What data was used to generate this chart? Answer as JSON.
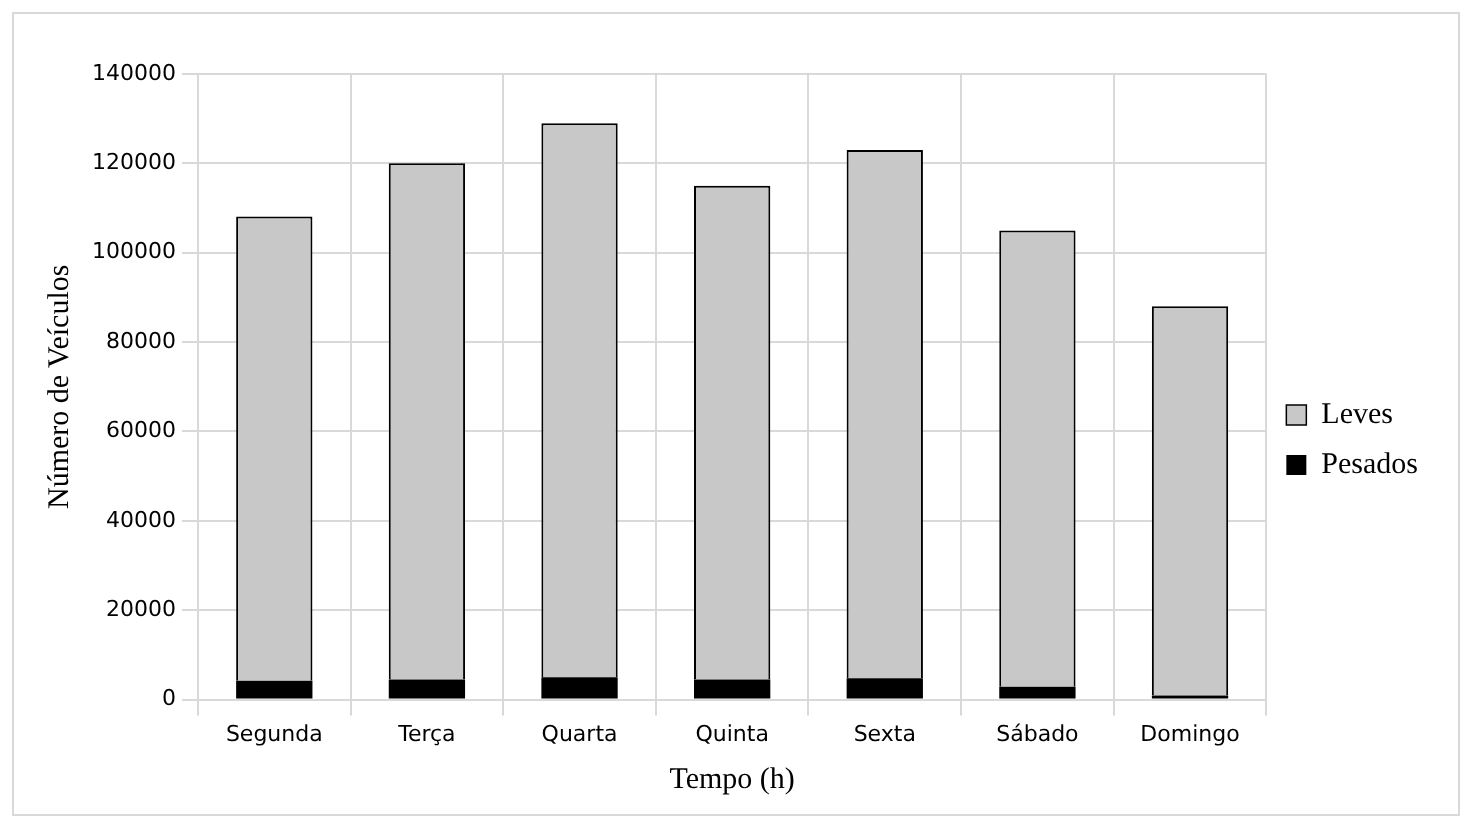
{
  "chart_data": {
    "type": "bar",
    "stacked": true,
    "xlabel": "Tempo (h)",
    "ylabel": "Número de Veículos",
    "categories": [
      "Segunda",
      "Terça",
      "Quarta",
      "Quinta",
      "Sexta",
      "Sábado",
      "Domingo"
    ],
    "series": [
      {
        "name": "Pesados",
        "color": "#000000",
        "values": [
          4200,
          4500,
          5000,
          4500,
          4800,
          2900,
          900
        ]
      },
      {
        "name": "Leves",
        "color": "#c8c8c8",
        "values": [
          103900,
          115500,
          124000,
          110500,
          118200,
          102100,
          87100
        ]
      }
    ],
    "ylim": [
      0,
      140000
    ],
    "yticks": [
      0,
      20000,
      40000,
      60000,
      80000,
      100000,
      120000,
      140000
    ],
    "grid": true,
    "legend": "right"
  }
}
